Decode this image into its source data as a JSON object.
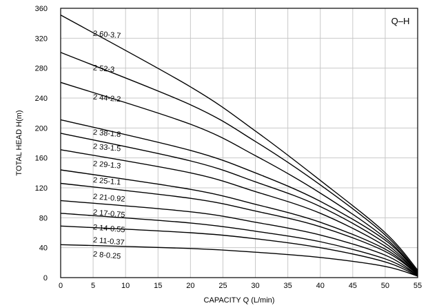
{
  "chart_data": {
    "type": "line",
    "badge": "Q–H",
    "xlabel": "CAPACITY Q (L/min)",
    "ylabel": "TOTAL HEAD H(m)",
    "xlim": [
      0,
      55
    ],
    "ylim": [
      0,
      360
    ],
    "xticks": [
      "0",
      "5",
      "10",
      "15",
      "20",
      "25",
      "30",
      "35",
      "40",
      "45",
      "50",
      "55"
    ],
    "yticks": [
      "0",
      "40",
      "80",
      "120",
      "160",
      "200",
      "240",
      "280",
      "320",
      "360"
    ],
    "grid": true,
    "series": [
      {
        "name": "2 60-3.7",
        "x": [
          0,
          20,
          30,
          40,
          50,
          55
        ],
        "values": [
          351,
          255,
          196,
          130,
          60,
          10
        ],
        "label_at": [
          5,
          327
        ]
      },
      {
        "name": "2 52-3",
        "x": [
          0,
          20,
          30,
          40,
          50,
          55
        ],
        "values": [
          301,
          231,
          182,
          124,
          57,
          8
        ],
        "label_at": [
          5,
          281
        ]
      },
      {
        "name": "2 44-2.2",
        "x": [
          0,
          20,
          30,
          40,
          50,
          55
        ],
        "values": [
          261,
          205,
          163,
          113,
          53,
          7
        ],
        "label_at": [
          5,
          242
        ]
      },
      {
        "name": "2 38-1.8",
        "x": [
          0,
          20,
          30,
          40,
          50,
          55
        ],
        "values": [
          211,
          170,
          140,
          102,
          50,
          6
        ],
        "label_at": [
          5,
          195
        ]
      },
      {
        "name": "2 33-1.5",
        "x": [
          0,
          20,
          30,
          40,
          50,
          55
        ],
        "values": [
          193,
          156,
          128,
          95,
          46,
          5
        ],
        "label_at": [
          5,
          176
        ]
      },
      {
        "name": "2 29-1.3",
        "x": [
          0,
          20,
          30,
          40,
          50,
          55
        ],
        "values": [
          171,
          140,
          115,
          86,
          42,
          5
        ],
        "label_at": [
          5,
          153
        ]
      },
      {
        "name": "2 25-1.1",
        "x": [
          0,
          20,
          30,
          40,
          50,
          55
        ],
        "values": [
          144,
          118,
          98,
          74,
          38,
          4
        ],
        "label_at": [
          5,
          131
        ]
      },
      {
        "name": "2 21-0.92",
        "x": [
          0,
          20,
          30,
          40,
          50,
          55
        ],
        "values": [
          126,
          106,
          89,
          68,
          35,
          4
        ],
        "label_at": [
          5,
          109
        ]
      },
      {
        "name": "2 17-0.75",
        "x": [
          0,
          20,
          30,
          40,
          50,
          55
        ],
        "values": [
          103,
          88,
          74,
          57,
          30,
          3
        ],
        "label_at": [
          5,
          88
        ]
      },
      {
        "name": "2 14-0.55",
        "x": [
          0,
          20,
          30,
          40,
          50,
          55
        ],
        "values": [
          86,
          73,
          62,
          48,
          25,
          3
        ],
        "label_at": [
          5,
          68
        ]
      },
      {
        "name": "2 11-0.37",
        "x": [
          0,
          20,
          30,
          40,
          50,
          55
        ],
        "values": [
          69,
          60,
          52,
          40,
          21,
          2
        ],
        "label_at": [
          5,
          51
        ]
      },
      {
        "name": "2 8-0.25",
        "x": [
          0,
          20,
          30,
          40,
          50,
          55
        ],
        "values": [
          44,
          39,
          34,
          27,
          15,
          2
        ],
        "label_at": [
          5,
          32
        ]
      }
    ]
  }
}
